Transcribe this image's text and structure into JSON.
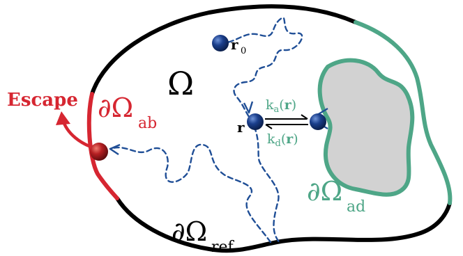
{
  "labels": {
    "domain": "Ω",
    "start_r": "r",
    "start_sub": "0",
    "position_r": "r",
    "absorbing_boundary": "∂Ω",
    "absorbing_sub": "ab",
    "adsorbing_boundary": "∂Ω",
    "adsorbing_sub": "ad",
    "reflecting_boundary": "∂Ω",
    "reflecting_sub": "ref",
    "escape": "Escape",
    "rate_on_k": "k",
    "rate_on_sub": "a",
    "rate_on_arg_open": "(",
    "rate_on_arg": "r",
    "rate_on_arg_close": ")",
    "rate_off_k": "k",
    "rate_off_sub": "d",
    "rate_off_arg_open": "(",
    "rate_off_arg": "r",
    "rate_off_arg_close": ")"
  },
  "colors": {
    "reflecting": "#000000",
    "absorbing": "#d62631",
    "adsorbing": "#4ea687",
    "obstacle_fill": "#d2d2d2",
    "path": "#1f4e96",
    "particle": "#1b3f8c",
    "absorbed_particle": "#b51f22"
  }
}
